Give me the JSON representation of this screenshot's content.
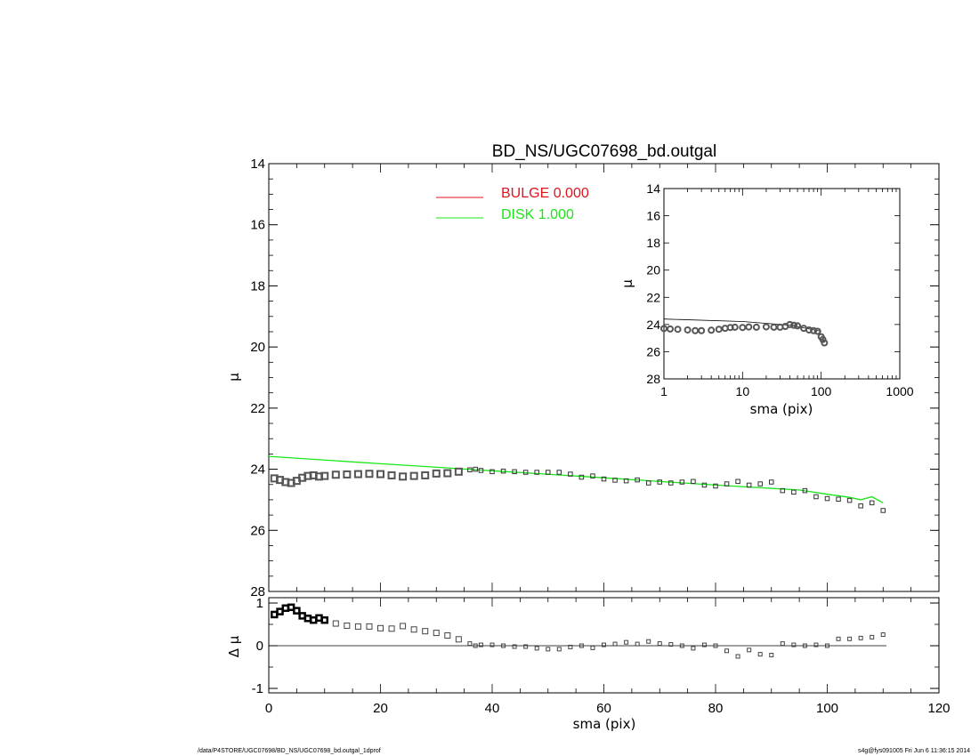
{
  "chart_data": [
    {
      "type": "scatter",
      "title": "BD_NS/UGC07698_bd.outgal",
      "xlabel": "",
      "ylabel": "μ",
      "xlim": [
        0,
        120
      ],
      "ylim": [
        28,
        14
      ],
      "y_inverted": true,
      "xticks": [
        "0",
        "20",
        "40",
        "60",
        "80",
        "100",
        "120"
      ],
      "yticks": [
        "14",
        "16",
        "18",
        "20",
        "22",
        "24",
        "26",
        "28"
      ],
      "legend": [
        {
          "label": "BULGE",
          "value": "0.000",
          "color": "#e0141e"
        },
        {
          "label": "DISK",
          "value": "1.000",
          "color": "#19e619"
        }
      ],
      "series": [
        {
          "kind": "points",
          "x": [
            1,
            2,
            3,
            4,
            5,
            6,
            7,
            8,
            9,
            10,
            12,
            14,
            16,
            18,
            20,
            22,
            24,
            26,
            28,
            30,
            32,
            34,
            36,
            37,
            38,
            40,
            42,
            44,
            46,
            48,
            50,
            52,
            54,
            56,
            58,
            60,
            62,
            64,
            66,
            68,
            70,
            72,
            74,
            76,
            78,
            80,
            82,
            84,
            86,
            88,
            90,
            92,
            94,
            96,
            98,
            100,
            102,
            104,
            106,
            108,
            110
          ],
          "y": [
            24.3,
            24.35,
            24.42,
            24.45,
            24.38,
            24.28,
            24.22,
            24.2,
            24.24,
            24.22,
            24.18,
            24.17,
            24.16,
            24.15,
            24.16,
            24.2,
            24.24,
            24.22,
            24.2,
            24.14,
            24.13,
            24.08,
            24.02,
            24.0,
            24.04,
            24.08,
            24.06,
            24.08,
            24.1,
            24.1,
            24.1,
            24.1,
            24.16,
            24.26,
            24.22,
            24.32,
            24.36,
            24.38,
            24.35,
            24.45,
            24.42,
            24.45,
            24.42,
            24.4,
            24.52,
            24.55,
            24.48,
            24.4,
            24.52,
            24.48,
            24.42,
            24.7,
            24.75,
            24.7,
            24.9,
            24.96,
            24.98,
            25.02,
            25.2,
            25.1,
            25.35
          ]
        },
        {
          "kind": "line",
          "name": "DISK",
          "x": [
            0,
            20,
            40,
            60,
            80,
            95,
            100,
            104,
            106,
            108,
            110
          ],
          "y": [
            23.58,
            23.82,
            24.05,
            24.28,
            24.52,
            24.68,
            24.82,
            24.92,
            25.0,
            24.9,
            25.1
          ]
        }
      ]
    },
    {
      "type": "scatter",
      "title": "",
      "xlabel": "sma (pix)",
      "ylabel": "Δ μ",
      "xlim": [
        0,
        120
      ],
      "ylim": [
        -1.1,
        1.1
      ],
      "xticks": [
        "0",
        "20",
        "40",
        "60",
        "80",
        "100",
        "120"
      ],
      "yticks": [
        "1",
        "0",
        "-1"
      ],
      "reference_line": 0,
      "series": [
        {
          "kind": "points",
          "x": [
            1,
            2,
            3,
            4,
            5,
            6,
            7,
            8,
            9,
            10,
            12,
            14,
            16,
            18,
            20,
            22,
            24,
            26,
            28,
            30,
            32,
            34,
            36,
            37,
            38,
            40,
            42,
            44,
            46,
            48,
            50,
            52,
            54,
            56,
            58,
            60,
            62,
            64,
            66,
            68,
            70,
            72,
            74,
            76,
            78,
            80,
            82,
            84,
            86,
            88,
            90,
            92,
            94,
            96,
            98,
            100,
            102,
            104,
            106,
            108,
            110
          ],
          "y": [
            0.73,
            0.8,
            0.88,
            0.9,
            0.82,
            0.7,
            0.64,
            0.6,
            0.65,
            0.6,
            0.52,
            0.47,
            0.45,
            0.45,
            0.41,
            0.4,
            0.46,
            0.38,
            0.34,
            0.3,
            0.24,
            0.15,
            0.05,
            0.0,
            0.02,
            0.02,
            0.0,
            -0.02,
            -0.02,
            -0.06,
            -0.08,
            -0.08,
            -0.03,
            0.0,
            -0.05,
            0.02,
            0.04,
            0.08,
            0.04,
            0.1,
            0.05,
            0.03,
            0.0,
            -0.06,
            0.02,
            0.0,
            -0.12,
            -0.25,
            -0.1,
            -0.2,
            -0.22,
            0.05,
            0.02,
            0.0,
            0.02,
            0.0,
            0.16,
            0.16,
            0.18,
            0.2,
            0.26
          ]
        }
      ]
    },
    {
      "type": "scatter",
      "title": "",
      "xlabel": "sma (pix)",
      "ylabel": "μ",
      "xscale": "log",
      "xlim": [
        1,
        1000
      ],
      "ylim": [
        28,
        14
      ],
      "y_inverted": true,
      "xticks": [
        "1",
        "10",
        "100",
        "1000"
      ],
      "yticks": [
        "14",
        "16",
        "18",
        "20",
        "22",
        "24",
        "26",
        "28"
      ],
      "series": [
        {
          "kind": "points",
          "x": [
            1,
            1.2,
            1.5,
            2,
            2.5,
            3,
            4,
            5,
            6,
            7,
            8,
            10,
            12,
            15,
            20,
            25,
            30,
            35,
            40,
            45,
            50,
            60,
            70,
            80,
            90,
            100,
            105,
            110
          ],
          "y": [
            24.3,
            24.33,
            24.35,
            24.4,
            24.45,
            24.45,
            24.42,
            24.35,
            24.28,
            24.22,
            24.2,
            24.22,
            24.18,
            24.2,
            24.17,
            24.2,
            24.2,
            24.14,
            24.0,
            24.06,
            24.1,
            24.28,
            24.4,
            24.45,
            24.5,
            24.9,
            25.1,
            25.35
          ]
        },
        {
          "kind": "line",
          "x": [
            1,
            10,
            40,
            100
          ],
          "y": [
            23.6,
            23.78,
            24.05,
            24.5
          ]
        }
      ]
    }
  ],
  "footer": {
    "left": "/data/P4STORE/UGC07698/BD_NS/UGC07698_bd.outgal_1dprof",
    "right": "s4g@fys091005  Fri Jun  6 11:36:15 2014"
  }
}
